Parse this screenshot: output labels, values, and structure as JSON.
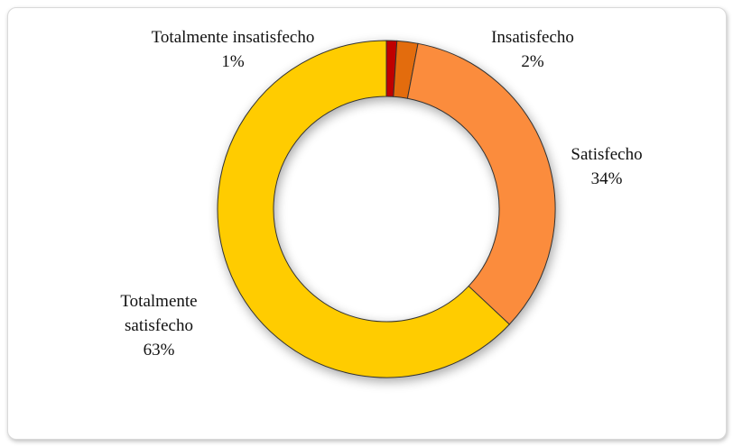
{
  "chart_data": {
    "type": "donut",
    "categories": [
      "Totalmente insatisfecho",
      "Insatisfecho",
      "Satisfecho",
      "Totalmente satisfecho"
    ],
    "values": [
      1,
      2,
      34,
      63
    ],
    "value_labels": [
      "1%",
      "2%",
      "34%",
      "63%"
    ],
    "colors": [
      "#c00000",
      "#e36c09",
      "#fb8c3c",
      "#ffcc00"
    ]
  }
}
